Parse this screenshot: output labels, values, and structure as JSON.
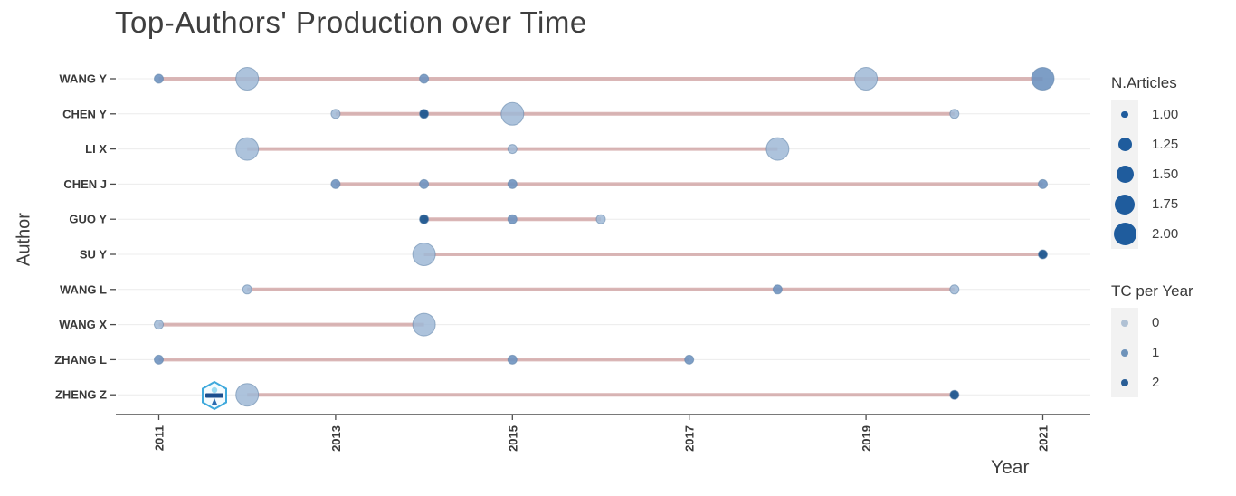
{
  "chart_data": {
    "type": "scatter",
    "title": "Top-Authors' Production over Time",
    "xlabel": "Year",
    "ylabel": "Author",
    "x_ticks": [
      "2011",
      "2013",
      "2015",
      "2017",
      "2019",
      "2021"
    ],
    "x_range": [
      2010.5,
      2021.5
    ],
    "grid": "horizontal-only",
    "timeline_color": "#cc9a9a",
    "tc_colors": {
      "0": "#9fb8d6",
      "1": "#6f94c0",
      "2": "#1e568f"
    },
    "size_radius": {
      "1": 5,
      "2": 12.5
    },
    "authors": [
      {
        "name": "WANG Y",
        "line": [
          2011,
          2021
        ],
        "points": [
          {
            "year": 2011,
            "n": 1,
            "tc": "1"
          },
          {
            "year": 2012,
            "n": 2,
            "tc": "0"
          },
          {
            "year": 2014,
            "n": 1,
            "tc": "1"
          },
          {
            "year": 2019,
            "n": 2,
            "tc": "0"
          },
          {
            "year": 2021,
            "n": 2,
            "tc": "1"
          }
        ]
      },
      {
        "name": "CHEN Y",
        "line": [
          2013,
          2020
        ],
        "points": [
          {
            "year": 2013,
            "n": 1,
            "tc": "0"
          },
          {
            "year": 2014,
            "n": 1,
            "tc": "2"
          },
          {
            "year": 2015,
            "n": 2,
            "tc": "0"
          },
          {
            "year": 2020,
            "n": 1,
            "tc": "0"
          }
        ]
      },
      {
        "name": "LI X",
        "line": [
          2012,
          2018
        ],
        "points": [
          {
            "year": 2012,
            "n": 2,
            "tc": "0"
          },
          {
            "year": 2015,
            "n": 1,
            "tc": "0"
          },
          {
            "year": 2018,
            "n": 2,
            "tc": "0"
          }
        ]
      },
      {
        "name": "CHEN J",
        "line": [
          2013,
          2021
        ],
        "points": [
          {
            "year": 2013,
            "n": 1,
            "tc": "1"
          },
          {
            "year": 2014,
            "n": 1,
            "tc": "1"
          },
          {
            "year": 2015,
            "n": 1,
            "tc": "1"
          },
          {
            "year": 2021,
            "n": 1,
            "tc": "1"
          }
        ]
      },
      {
        "name": "GUO Y",
        "line": [
          2014,
          2016
        ],
        "points": [
          {
            "year": 2014,
            "n": 1,
            "tc": "2"
          },
          {
            "year": 2015,
            "n": 1,
            "tc": "1"
          },
          {
            "year": 2016,
            "n": 1,
            "tc": "0"
          }
        ]
      },
      {
        "name": "SU Y",
        "line": [
          2014,
          2021
        ],
        "points": [
          {
            "year": 2014,
            "n": 2,
            "tc": "0"
          },
          {
            "year": 2021,
            "n": 1,
            "tc": "2"
          }
        ]
      },
      {
        "name": "WANG L",
        "line": [
          2012,
          2020
        ],
        "points": [
          {
            "year": 2012,
            "n": 1,
            "tc": "0"
          },
          {
            "year": 2018,
            "n": 1,
            "tc": "1"
          },
          {
            "year": 2020,
            "n": 1,
            "tc": "0"
          }
        ]
      },
      {
        "name": "WANG X",
        "line": [
          2011,
          2014
        ],
        "points": [
          {
            "year": 2011,
            "n": 1,
            "tc": "0"
          },
          {
            "year": 2014,
            "n": 2,
            "tc": "0"
          }
        ]
      },
      {
        "name": "ZHANG L",
        "line": [
          2011,
          2017
        ],
        "points": [
          {
            "year": 2011,
            "n": 1,
            "tc": "1"
          },
          {
            "year": 2015,
            "n": 1,
            "tc": "1"
          },
          {
            "year": 2017,
            "n": 1,
            "tc": "1"
          }
        ]
      },
      {
        "name": "ZHENG Z",
        "line": [
          2012,
          2020
        ],
        "points": [
          {
            "year": 2012,
            "n": 2,
            "tc": "0"
          },
          {
            "year": 2020,
            "n": 1,
            "tc": "2"
          }
        ]
      }
    ],
    "legend_size": {
      "title": "N.Articles",
      "dot_color": "#1f5c9d",
      "entries": [
        {
          "label": "1.00",
          "r": 3.7
        },
        {
          "label": "1.25",
          "r": 7.5
        },
        {
          "label": "1.50",
          "r": 9.5
        },
        {
          "label": "1.75",
          "r": 11
        },
        {
          "label": "2.00",
          "r": 12.5
        }
      ]
    },
    "legend_color": {
      "title": "TC per Year",
      "entries": [
        {
          "label": "0",
          "color": "#b0c1d4"
        },
        {
          "label": "1",
          "color": "#6e93ba"
        },
        {
          "label": "2",
          "color": "#2a5e96"
        }
      ]
    }
  },
  "watermark": {
    "name": "hexagon-badge-logo"
  }
}
